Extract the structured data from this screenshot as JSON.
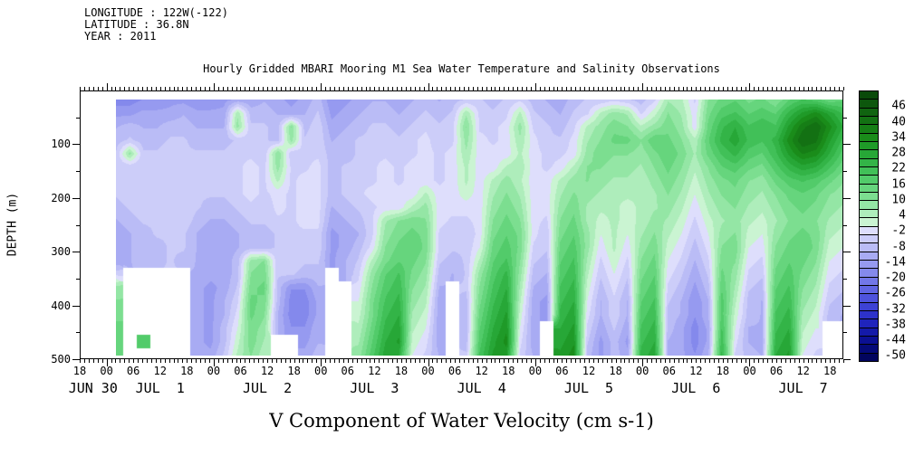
{
  "header": {
    "longitude": "LONGITUDE : 122W(-122)",
    "latitude": "LATITUDE : 36.8N",
    "year": "YEAR : 2011"
  },
  "title": "Hourly Gridded MBARI Mooring M1 Sea Water Temperature and Salinity Observations",
  "bottom_title": "V Component of Water Velocity (cm s-1)",
  "chart_data": {
    "type": "heatmap",
    "title": "Hourly Gridded MBARI Mooring M1 Sea Water Temperature and Salinity Observations",
    "subtitle": "V Component of Water Velocity (cm s-1)",
    "ylabel": "DEPTH (m)",
    "y_range": [
      0,
      500
    ],
    "depth_major_ticks": [
      100,
      200,
      300,
      400,
      500
    ],
    "depth_minor_ticks": [
      50,
      150,
      250,
      350,
      450
    ],
    "x_start": "JUN 30 18:00 2011",
    "x_end": "JUL 7 21:00 2011",
    "hours_total": 171,
    "hour_labels": [
      "18",
      "00",
      "06",
      "12",
      "18",
      "00",
      "06",
      "12",
      "18",
      "00",
      "06",
      "12",
      "18",
      "00",
      "06",
      "12",
      "18",
      "00",
      "06",
      "12",
      "18",
      "00",
      "06",
      "12",
      "18",
      "00",
      "06",
      "12",
      "18"
    ],
    "date_labels": [
      "JUN 30",
      "JUL  1",
      "JUL  2",
      "JUL  3",
      "JUL  4",
      "JUL  5",
      "JUL  6",
      "JUL  7"
    ],
    "legend_position": "right",
    "grid_on": false,
    "colorbar": {
      "ticks": [
        46,
        40,
        34,
        28,
        22,
        16,
        10,
        4,
        -2,
        -8,
        -14,
        -20,
        -26,
        -32,
        -38,
        -44,
        -50
      ],
      "value_top": 52,
      "value_bottom": -52,
      "cells": 32,
      "palette": [
        "#0a4a0a",
        "#0d570d",
        "#106410",
        "#137113",
        "#167e16",
        "#1a8c1a",
        "#1f9a28",
        "#27a737",
        "#33b447",
        "#41c058",
        "#52cb6a",
        "#66d57d",
        "#7cde90",
        "#94e6a5",
        "#aeedbb",
        "#caf4d2",
        "#dedefc",
        "#cccdf9",
        "#babcf6",
        "#a8abf3",
        "#969af0",
        "#8489ec",
        "#7277e8",
        "#6065e3",
        "#4e53dd",
        "#3d42d5",
        "#2d32ca",
        "#1f24bc",
        "#141aa9",
        "#0b1092",
        "#050a78",
        "#02055e"
      ],
      "missing_color": "#ffffff"
    },
    "grid": {
      "note": "values in cm/s on a 55 col (3-hourly, JUL 1 01:00 - JUL 7 19:00) x 20 row (25 m, ~15-490 m) grid; null = missing data",
      "cols": 55,
      "rows": 20,
      "values": [
        [
          -18,
          -18,
          -16,
          -16,
          -14,
          -14,
          -16,
          -16,
          -14,
          -12,
          -12,
          -10,
          -12,
          -14,
          -12,
          -8,
          -16,
          -14,
          -12,
          -10,
          -10,
          -12,
          -10,
          -8,
          -10,
          -8,
          -6,
          -6,
          -8,
          -6,
          -4,
          -8,
          -10,
          -12,
          -8,
          -6,
          -6,
          -4,
          -6,
          -8,
          -4,
          6,
          4,
          -4,
          10,
          14,
          16,
          12,
          14,
          10,
          16,
          20,
          18,
          14,
          16
        ],
        [
          -14,
          -14,
          -12,
          -12,
          -12,
          -10,
          -12,
          -12,
          -12,
          6,
          -8,
          -8,
          -10,
          -12,
          -10,
          -6,
          -14,
          -12,
          -10,
          -8,
          -8,
          -10,
          -8,
          -6,
          -8,
          -6,
          6,
          -4,
          -6,
          -4,
          4,
          -6,
          -8,
          -10,
          -6,
          -4,
          4,
          8,
          6,
          -4,
          2,
          10,
          6,
          -2,
          12,
          18,
          20,
          16,
          18,
          16,
          24,
          30,
          34,
          28,
          22
        ],
        [
          -10,
          -8,
          -10,
          -10,
          -8,
          -8,
          -10,
          -10,
          -10,
          8,
          -6,
          -6,
          -8,
          10,
          -8,
          -4,
          -12,
          -10,
          -8,
          -6,
          -6,
          -8,
          -6,
          -4,
          -6,
          -4,
          10,
          -4,
          -4,
          -2,
          8,
          -4,
          -6,
          -8,
          -4,
          4,
          8,
          12,
          10,
          4,
          8,
          12,
          8,
          -2,
          14,
          22,
          26,
          20,
          22,
          20,
          30,
          38,
          42,
          34,
          26
        ],
        [
          -8,
          -6,
          -8,
          -8,
          -6,
          -6,
          -8,
          -8,
          -8,
          -6,
          -4,
          -6,
          -8,
          8,
          -6,
          -4,
          -10,
          -8,
          -6,
          -6,
          -4,
          -6,
          -4,
          -2,
          -6,
          -4,
          8,
          -2,
          -4,
          -2,
          6,
          -2,
          -6,
          -6,
          -2,
          6,
          10,
          14,
          14,
          10,
          16,
          14,
          10,
          4,
          16,
          24,
          28,
          22,
          20,
          24,
          34,
          42,
          40,
          30,
          22
        ],
        [
          -6,
          8,
          -6,
          -6,
          -4,
          -6,
          -6,
          -6,
          -6,
          -4,
          -4,
          -6,
          10,
          -6,
          -4,
          -4,
          -8,
          -8,
          -6,
          -4,
          -4,
          -6,
          -4,
          -2,
          -4,
          -2,
          6,
          -2,
          -2,
          -2,
          4,
          -2,
          -4,
          -4,
          -2,
          8,
          12,
          10,
          10,
          8,
          12,
          16,
          12,
          6,
          14,
          20,
          24,
          18,
          16,
          22,
          30,
          36,
          34,
          26,
          18
        ],
        [
          -6,
          -6,
          -6,
          -4,
          -6,
          -4,
          -6,
          -6,
          -6,
          -4,
          -2,
          -4,
          8,
          -4,
          -4,
          -2,
          -8,
          -6,
          -6,
          -4,
          -2,
          -4,
          -2,
          -2,
          -4,
          -2,
          4,
          -2,
          -2,
          4,
          6,
          -2,
          -4,
          -2,
          4,
          10,
          10,
          8,
          8,
          6,
          10,
          14,
          10,
          4,
          10,
          16,
          18,
          14,
          12,
          18,
          24,
          28,
          26,
          20,
          14
        ],
        [
          -6,
          -4,
          -6,
          -4,
          -4,
          -4,
          -6,
          -6,
          -6,
          -4,
          -2,
          -4,
          4,
          -4,
          -2,
          -2,
          -8,
          -6,
          -4,
          -4,
          -2,
          -4,
          -2,
          -2,
          -4,
          -2,
          4,
          -2,
          4,
          8,
          4,
          -2,
          -2,
          4,
          8,
          10,
          8,
          6,
          6,
          4,
          8,
          12,
          8,
          2,
          8,
          12,
          14,
          10,
          8,
          14,
          18,
          20,
          18,
          14,
          10
        ],
        [
          -6,
          -4,
          -4,
          -4,
          -4,
          -4,
          -6,
          -6,
          -6,
          -4,
          -2,
          -4,
          -2,
          -4,
          -2,
          -2,
          -8,
          -6,
          -4,
          -2,
          -2,
          -2,
          -2,
          4,
          -2,
          -2,
          2,
          -2,
          6,
          10,
          6,
          -2,
          -2,
          6,
          10,
          8,
          6,
          4,
          4,
          4,
          6,
          10,
          6,
          0,
          6,
          10,
          12,
          8,
          6,
          10,
          14,
          16,
          14,
          10,
          8
        ],
        [
          -8,
          -6,
          -4,
          -4,
          -4,
          -4,
          -6,
          -8,
          -8,
          -6,
          -4,
          -6,
          -2,
          -4,
          -2,
          -2,
          -10,
          -8,
          -6,
          -4,
          -2,
          -2,
          4,
          8,
          -2,
          -2,
          -2,
          -2,
          8,
          12,
          8,
          -2,
          -2,
          8,
          12,
          6,
          4,
          4,
          2,
          4,
          6,
          8,
          4,
          -2,
          4,
          8,
          10,
          6,
          4,
          8,
          12,
          14,
          12,
          8,
          6
        ],
        [
          -10,
          -8,
          -6,
          -6,
          -4,
          -4,
          -8,
          -10,
          -10,
          -8,
          -6,
          -6,
          -4,
          -4,
          -2,
          -2,
          -12,
          -10,
          -8,
          -4,
          6,
          10,
          12,
          10,
          -2,
          -4,
          -4,
          -2,
          10,
          14,
          10,
          -2,
          -4,
          10,
          14,
          6,
          2,
          4,
          2,
          4,
          8,
          6,
          2,
          -4,
          2,
          6,
          8,
          4,
          2,
          6,
          10,
          12,
          10,
          6,
          4
        ],
        [
          -12,
          -10,
          -8,
          -6,
          -6,
          -6,
          -10,
          -12,
          -12,
          -10,
          -8,
          -8,
          -6,
          -4,
          -4,
          -4,
          -14,
          -12,
          -10,
          -4,
          8,
          12,
          14,
          12,
          -4,
          -6,
          -6,
          -2,
          12,
          16,
          12,
          -2,
          -6,
          12,
          16,
          8,
          0,
          4,
          0,
          6,
          10,
          4,
          0,
          -6,
          0,
          8,
          10,
          2,
          0,
          8,
          12,
          14,
          12,
          4,
          2
        ],
        [
          -12,
          -10,
          -8,
          -8,
          -6,
          -6,
          -10,
          -12,
          -12,
          -10,
          -8,
          -8,
          -6,
          -4,
          -4,
          -4,
          -14,
          -12,
          -8,
          -2,
          10,
          14,
          16,
          12,
          -4,
          -6,
          -6,
          0,
          14,
          18,
          12,
          -4,
          -6,
          14,
          18,
          8,
          -2,
          4,
          -2,
          8,
          12,
          2,
          -2,
          -8,
          -2,
          10,
          12,
          0,
          -2,
          10,
          14,
          16,
          12,
          2,
          0
        ],
        [
          -12,
          -10,
          -8,
          -8,
          -6,
          -8,
          -10,
          -12,
          -12,
          -8,
          8,
          10,
          -6,
          -4,
          -6,
          -6,
          -14,
          -10,
          -6,
          4,
          12,
          16,
          14,
          10,
          -6,
          -8,
          -6,
          4,
          16,
          20,
          10,
          -6,
          -8,
          16,
          20,
          6,
          -4,
          2,
          -4,
          10,
          14,
          0,
          -4,
          -10,
          -4,
          12,
          10,
          -2,
          -4,
          12,
          16,
          14,
          10,
          0,
          -2
        ],
        [
          -4,
          null,
          null,
          null,
          null,
          null,
          -10,
          -12,
          -12,
          -8,
          10,
          12,
          -6,
          -6,
          -8,
          -8,
          null,
          -10,
          -4,
          8,
          16,
          20,
          12,
          8,
          -8,
          -10,
          -6,
          8,
          18,
          24,
          8,
          -8,
          -10,
          18,
          22,
          4,
          -6,
          0,
          -6,
          12,
          16,
          -2,
          -6,
          -12,
          -6,
          14,
          8,
          -4,
          -6,
          14,
          18,
          12,
          8,
          -2,
          -4
        ],
        [
          8,
          null,
          null,
          null,
          null,
          null,
          -12,
          -14,
          -12,
          -6,
          12,
          14,
          -8,
          -16,
          -16,
          -10,
          null,
          null,
          -2,
          10,
          18,
          22,
          10,
          6,
          -10,
          null,
          -6,
          10,
          20,
          26,
          6,
          -10,
          -12,
          20,
          24,
          2,
          -8,
          -2,
          -8,
          14,
          18,
          -4,
          -8,
          -14,
          -8,
          16,
          6,
          -6,
          -8,
          16,
          20,
          10,
          6,
          -4,
          -6
        ],
        [
          10,
          null,
          null,
          null,
          null,
          null,
          -12,
          -14,
          -10,
          -4,
          14,
          12,
          -8,
          -18,
          -18,
          -12,
          null,
          null,
          0,
          12,
          20,
          24,
          8,
          4,
          -12,
          null,
          -8,
          12,
          22,
          28,
          4,
          -12,
          -14,
          22,
          26,
          0,
          -10,
          -4,
          -10,
          16,
          20,
          -6,
          -10,
          -16,
          -10,
          18,
          4,
          -8,
          -10,
          18,
          22,
          8,
          4,
          -6,
          -8
        ],
        [
          12,
          null,
          null,
          null,
          null,
          null,
          -12,
          -14,
          -10,
          -2,
          14,
          10,
          -10,
          -18,
          -18,
          -12,
          null,
          null,
          2,
          12,
          22,
          26,
          6,
          2,
          -12,
          null,
          -8,
          14,
          24,
          30,
          2,
          -12,
          -14,
          24,
          28,
          -2,
          -10,
          -4,
          -10,
          18,
          22,
          -8,
          -10,
          -16,
          -10,
          18,
          2,
          -8,
          -10,
          20,
          24,
          6,
          2,
          -8,
          -10
        ],
        [
          14,
          null,
          null,
          null,
          null,
          null,
          -12,
          -14,
          -8,
          0,
          12,
          8,
          -10,
          -16,
          -16,
          -10,
          null,
          null,
          4,
          14,
          24,
          28,
          4,
          0,
          -12,
          null,
          -8,
          16,
          26,
          32,
          0,
          -12,
          null,
          26,
          30,
          -4,
          -12,
          -6,
          -12,
          20,
          24,
          -8,
          -12,
          -18,
          -12,
          20,
          0,
          -10,
          -10,
          22,
          26,
          4,
          0,
          null,
          null
        ],
        [
          16,
          null,
          18,
          null,
          null,
          null,
          -12,
          -14,
          -8,
          2,
          12,
          6,
          null,
          null,
          -14,
          -10,
          null,
          null,
          6,
          16,
          26,
          30,
          2,
          -2,
          -12,
          null,
          -8,
          18,
          28,
          34,
          -2,
          -12,
          null,
          28,
          32,
          -6,
          -14,
          -8,
          -14,
          22,
          26,
          -10,
          -12,
          -18,
          -12,
          22,
          -2,
          -10,
          -12,
          24,
          28,
          2,
          -2,
          null,
          null
        ],
        [
          14,
          null,
          null,
          null,
          null,
          null,
          -12,
          -12,
          -6,
          4,
          10,
          4,
          null,
          null,
          -12,
          -8,
          null,
          null,
          8,
          18,
          28,
          26,
          0,
          -4,
          -10,
          null,
          -6,
          20,
          30,
          30,
          -4,
          -10,
          null,
          30,
          34,
          -8,
          -14,
          -8,
          -12,
          24,
          28,
          -10,
          -12,
          -16,
          -10,
          24,
          -4,
          -8,
          -10,
          26,
          30,
          0,
          -4,
          null,
          null
        ]
      ]
    }
  }
}
